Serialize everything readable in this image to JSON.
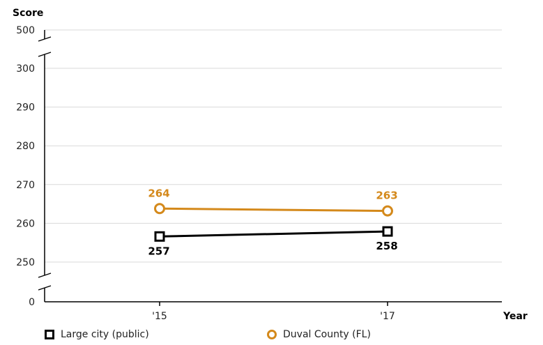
{
  "chart_data": {
    "type": "line",
    "ylabel": "Score",
    "xlabel": "Year",
    "categories": [
      "'15",
      "'17"
    ],
    "y_ticks": [
      "0",
      "250",
      "260",
      "270",
      "280",
      "290",
      "300",
      "500"
    ],
    "y_axis_breaks": [
      "between 0 and 250",
      "between 300 and 500"
    ],
    "grid": true,
    "legend_position": "bottom",
    "series": [
      {
        "name": "Large city (public)",
        "marker": "square",
        "color": "#000000",
        "values": [
          257,
          258
        ],
        "labels": [
          "257",
          "258"
        ],
        "exact_values": [
          256.6,
          257.9
        ]
      },
      {
        "name": "Duval County (FL)",
        "marker": "circle",
        "color": "#d4891b",
        "values": [
          264,
          263
        ],
        "labels": [
          "264",
          "263"
        ],
        "exact_values": [
          263.8,
          263.2
        ]
      }
    ]
  }
}
